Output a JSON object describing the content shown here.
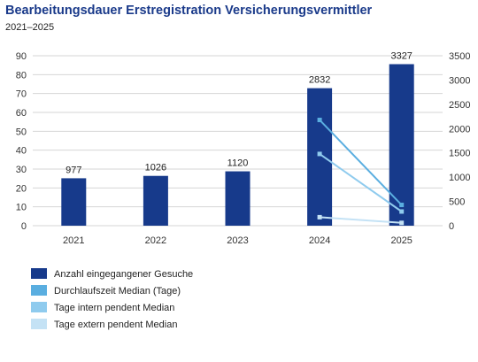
{
  "chart_data": {
    "type": "bar",
    "title": "Bearbeitungsdauer Erstregistration Versicherungsvermittler",
    "subtitle": "2021–2025",
    "categories": [
      "2021",
      "2022",
      "2023",
      "2024",
      "2025"
    ],
    "left_axis": {
      "min": 0,
      "max": 90,
      "ticks": [
        0,
        10,
        20,
        30,
        40,
        50,
        60,
        70,
        80,
        90
      ]
    },
    "right_axis": {
      "min": 0,
      "max": 3500,
      "ticks": [
        0,
        500,
        1000,
        1500,
        2000,
        2500,
        3000,
        3500
      ]
    },
    "grid": true,
    "legend_position": "bottom-left",
    "series": [
      {
        "name": "Anzahl eingegangener Gesuche",
        "kind": "bar",
        "axis": "right",
        "color": "#173a8b",
        "values": [
          977,
          1026,
          1120,
          2832,
          3327
        ],
        "labels": [
          "977",
          "1026",
          "1120",
          "2832",
          "3327"
        ]
      },
      {
        "name": "Durchlaufszeit Median (Tage)",
        "kind": "line",
        "axis": "left",
        "color": "#5aaee0",
        "values": [
          null,
          null,
          null,
          56,
          11
        ]
      },
      {
        "name": "Tage intern pendent Median",
        "kind": "line",
        "axis": "left",
        "color": "#8fcbee",
        "values": [
          null,
          null,
          null,
          38,
          7.5
        ]
      },
      {
        "name": "Tage extern pendent Median",
        "kind": "line",
        "axis": "left",
        "color": "#c4e2f5",
        "values": [
          null,
          null,
          null,
          4.5,
          1.5
        ]
      }
    ]
  }
}
